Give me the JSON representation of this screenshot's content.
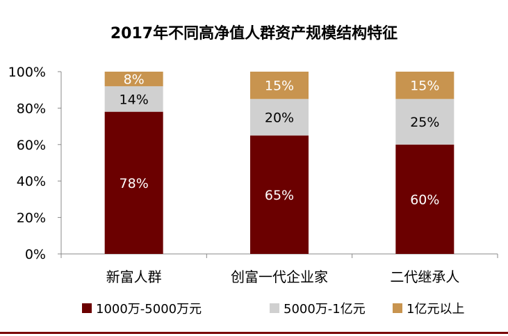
{
  "chart_data": {
    "type": "bar",
    "stacked": true,
    "title": "2017年不同高净值人群资产规模结构特征",
    "categories": [
      "新富人群",
      "创富一代企业家",
      "二代继承人"
    ],
    "series": [
      {
        "name": "1000万-5000万元",
        "values": [
          78,
          65,
          60
        ],
        "labels": [
          "78%",
          "65%",
          "60%"
        ]
      },
      {
        "name": "5000万-1亿元",
        "values": [
          14,
          20,
          25
        ],
        "labels": [
          "14%",
          "20%",
          "25%"
        ]
      },
      {
        "name": "1亿元以上",
        "values": [
          8,
          15,
          15
        ],
        "labels": [
          "8%",
          "15%",
          "15%"
        ]
      }
    ],
    "ylim": [
      0,
      100
    ],
    "y_ticks": [
      0,
      20,
      40,
      60,
      80,
      100
    ],
    "y_tick_labels": [
      "0%",
      "20%",
      "40%",
      "60%",
      "80%",
      "100%"
    ],
    "legend_position": "bottom",
    "grid": false,
    "colors": [
      "#6b0000",
      "#d0d0d0",
      "#c8944f"
    ],
    "label_colors": [
      "#ffffff",
      "#000000",
      "#ffffff"
    ]
  }
}
